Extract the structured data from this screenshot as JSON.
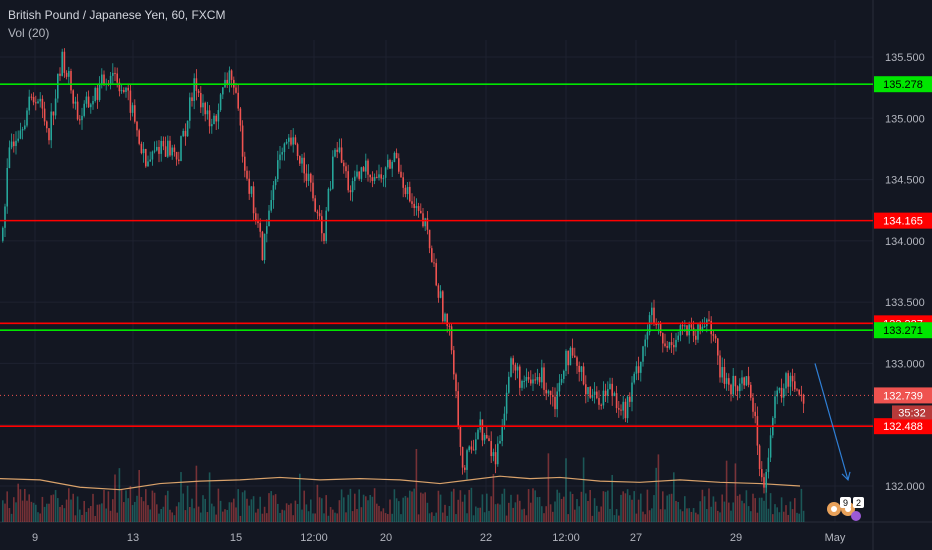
{
  "header": {
    "title": "British Pound / Japanese Yen, 60, FXCM",
    "volume_label": "Vol (20)"
  },
  "colors": {
    "background": "#131722",
    "bull": "#26a69a",
    "bear": "#ef5350",
    "support_line_red": "#ff0000",
    "support_line_green": "#00e600",
    "grid": "#1e2230",
    "volume_ma": "#d9a26b",
    "arrow": "#2f7fd6"
  },
  "chart_data": {
    "type": "candlestick",
    "title": "British Pound / Japanese Yen, 60, FXCM",
    "y_ticks": [
      "135.500",
      "135.000",
      "134.500",
      "134.000",
      "133.500",
      "133.000",
      "132.500",
      "132.000"
    ],
    "y_range": [
      131.8,
      135.72
    ],
    "x_ticks": [
      "9",
      "13",
      "15",
      "12:00",
      "20",
      "22",
      "12:00",
      "27",
      "29",
      "May"
    ],
    "horizontal_levels": [
      {
        "value": 135.278,
        "label": "135.278",
        "color": "green"
      },
      {
        "value": 134.165,
        "label": "134.165",
        "color": "red"
      },
      {
        "value": 133.327,
        "label": "133.327",
        "color": "red"
      },
      {
        "value": 133.271,
        "label": "133.271",
        "color": "green"
      },
      {
        "value": 132.488,
        "label": "132.488",
        "color": "red"
      }
    ],
    "last_price": {
      "value": 132.739,
      "label": "132.739",
      "countdown": "35:32"
    },
    "price_path": [
      [
        0,
        134.0
      ],
      [
        10,
        134.8
      ],
      [
        22,
        135.0
      ],
      [
        35,
        135.2
      ],
      [
        48,
        134.9
      ],
      [
        62,
        135.5
      ],
      [
        78,
        135.0
      ],
      [
        95,
        135.2
      ],
      [
        112,
        135.4
      ],
      [
        130,
        135.1
      ],
      [
        145,
        134.6
      ],
      [
        160,
        134.8
      ],
      [
        178,
        134.7
      ],
      [
        195,
        135.3
      ],
      [
        210,
        134.9
      ],
      [
        230,
        135.4
      ],
      [
        245,
        134.6
      ],
      [
        262,
        133.9
      ],
      [
        275,
        134.6
      ],
      [
        290,
        134.8
      ],
      [
        305,
        134.6
      ],
      [
        322,
        134.0
      ],
      [
        335,
        134.8
      ],
      [
        350,
        134.4
      ],
      [
        365,
        134.6
      ],
      [
        380,
        134.5
      ],
      [
        395,
        134.7
      ],
      [
        410,
        134.3
      ],
      [
        425,
        134.1
      ],
      [
        440,
        133.5
      ],
      [
        452,
        133.1
      ],
      [
        462,
        132.1
      ],
      [
        478,
        132.5
      ],
      [
        495,
        132.2
      ],
      [
        510,
        133.0
      ],
      [
        525,
        132.8
      ],
      [
        540,
        132.9
      ],
      [
        555,
        132.7
      ],
      [
        565,
        133.1
      ],
      [
        580,
        132.9
      ],
      [
        595,
        132.7
      ],
      [
        610,
        132.8
      ],
      [
        625,
        132.6
      ],
      [
        638,
        133.0
      ],
      [
        650,
        133.4
      ],
      [
        665,
        133.1
      ],
      [
        680,
        133.3
      ],
      [
        695,
        133.2
      ],
      [
        708,
        133.4
      ],
      [
        720,
        132.9
      ],
      [
        735,
        132.8
      ],
      [
        748,
        132.9
      ],
      [
        762,
        132.0
      ],
      [
        775,
        132.7
      ],
      [
        790,
        132.9
      ],
      [
        802,
        132.739
      ]
    ],
    "volume_ma_path": [
      [
        0,
        132.06
      ],
      [
        40,
        132.05
      ],
      [
        80,
        131.99
      ],
      [
        120,
        131.97
      ],
      [
        160,
        132.02
      ],
      [
        200,
        132.04
      ],
      [
        240,
        132.05
      ],
      [
        280,
        132.07
      ],
      [
        320,
        132.05
      ],
      [
        360,
        132.06
      ],
      [
        400,
        132.05
      ],
      [
        440,
        132.02
      ],
      [
        470,
        132.05
      ],
      [
        500,
        132.08
      ],
      [
        530,
        132.06
      ],
      [
        560,
        132.07
      ],
      [
        600,
        132.04
      ],
      [
        640,
        132.03
      ],
      [
        680,
        132.05
      ],
      [
        720,
        132.03
      ],
      [
        760,
        132.02
      ],
      [
        800,
        132.0
      ]
    ],
    "forecast_arrow": {
      "from": [
        815,
        133.0
      ],
      "to": [
        848,
        132.05
      ]
    },
    "badges": [
      "9",
      "2"
    ]
  }
}
